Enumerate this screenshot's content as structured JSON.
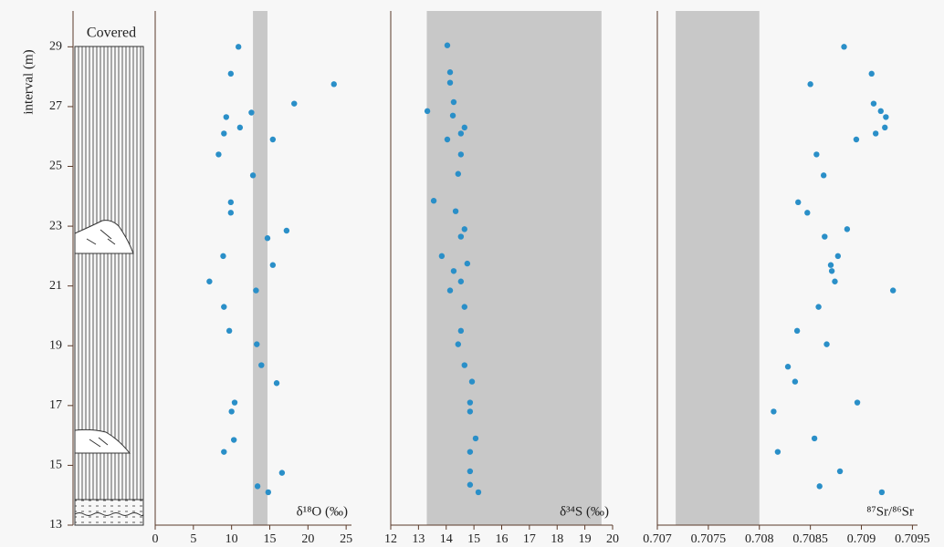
{
  "chart_data": [
    {
      "type": "scatter",
      "xlabel": "δ¹⁸O (‰)",
      "ylabel": "interval (m)",
      "lithology_label": "Covered",
      "color": "#2a8fc8",
      "band": [
        12.8,
        14.7
      ],
      "band_color": "#c8c8c8",
      "xlim": [
        0,
        25.7
      ],
      "xticks": [
        0,
        5,
        10,
        15,
        20,
        25
      ],
      "ylim": [
        13,
        30.2
      ],
      "yticks": [
        13,
        15,
        17,
        19,
        21,
        23,
        25,
        27,
        29
      ],
      "x": [
        10.9,
        9.9,
        23.4,
        18.2,
        12.6,
        9.3,
        11.1,
        9.0,
        15.4,
        8.3,
        12.8,
        9.9,
        9.9,
        17.2,
        14.7,
        8.9,
        15.4,
        7.1,
        13.2,
        9.0,
        9.7,
        13.3,
        13.9,
        15.9,
        10.4,
        10.0,
        10.3,
        9.0,
        16.6,
        13.4,
        14.8
      ],
      "y": [
        29.0,
        28.1,
        27.75,
        27.1,
        26.8,
        26.65,
        26.3,
        26.1,
        25.9,
        25.4,
        24.7,
        23.8,
        23.45,
        22.85,
        22.6,
        22.0,
        21.7,
        21.15,
        20.85,
        20.3,
        19.5,
        19.05,
        18.35,
        17.75,
        17.1,
        16.8,
        15.85,
        15.45,
        14.75,
        14.3,
        14.1
      ]
    },
    {
      "type": "scatter",
      "xlabel": "δ³⁴S (‰)",
      "color": "#2a8fc8",
      "band": [
        13.3,
        19.6
      ],
      "band_color": "#c8c8c8",
      "xlim": [
        12,
        20
      ],
      "xticks": [
        12,
        13,
        14,
        15,
        16,
        17,
        18,
        19,
        20
      ],
      "ylim": [
        13,
        30.2
      ],
      "x": [
        14.04,
        14.14,
        14.14,
        14.27,
        13.32,
        14.24,
        14.66,
        14.53,
        14.04,
        14.53,
        14.43,
        13.55,
        14.34,
        14.66,
        14.53,
        13.84,
        14.76,
        14.27,
        14.53,
        14.14,
        14.66,
        14.53,
        14.43,
        14.66,
        14.93,
        14.86,
        14.86,
        15.06,
        14.86,
        14.86,
        14.86,
        15.16
      ],
      "y": [
        29.05,
        28.15,
        27.8,
        27.15,
        26.85,
        26.7,
        26.3,
        26.1,
        25.9,
        25.4,
        24.75,
        23.85,
        23.5,
        22.9,
        22.65,
        22.0,
        21.75,
        21.5,
        21.15,
        20.85,
        20.3,
        19.5,
        19.05,
        18.35,
        17.8,
        17.1,
        16.8,
        15.9,
        15.45,
        14.8,
        14.35,
        14.1
      ]
    },
    {
      "type": "scatter",
      "xlabel": "⁸⁷Sr/⁸⁶Sr",
      "color": "#2a8fc8",
      "band": [
        0.70718,
        0.708
      ],
      "band_color": "#c8c8c8",
      "xlim": [
        0.707,
        0.70955
      ],
      "xticks": [
        0.707,
        0.7075,
        0.708,
        0.7085,
        0.709,
        0.7095
      ],
      "ylim": [
        13,
        30.2
      ],
      "x": [
        0.70883,
        0.7091,
        0.7085,
        0.70912,
        0.70919,
        0.70924,
        0.70923,
        0.70914,
        0.70895,
        0.70856,
        0.70863,
        0.70838,
        0.70847,
        0.70886,
        0.70864,
        0.70877,
        0.7087,
        0.70871,
        0.70874,
        0.70931,
        0.70858,
        0.70837,
        0.70866,
        0.70828,
        0.70835,
        0.70896,
        0.70814,
        0.70854,
        0.70818,
        0.70879,
        0.70859,
        0.7092
      ],
      "y": [
        29.0,
        28.1,
        27.75,
        27.1,
        26.85,
        26.65,
        26.3,
        26.1,
        25.9,
        25.4,
        24.7,
        23.8,
        23.45,
        22.9,
        22.65,
        22.0,
        21.7,
        21.5,
        21.15,
        20.85,
        20.3,
        19.5,
        19.05,
        18.3,
        17.8,
        17.1,
        16.8,
        15.9,
        15.45,
        14.8,
        14.3,
        14.1
      ]
    }
  ]
}
